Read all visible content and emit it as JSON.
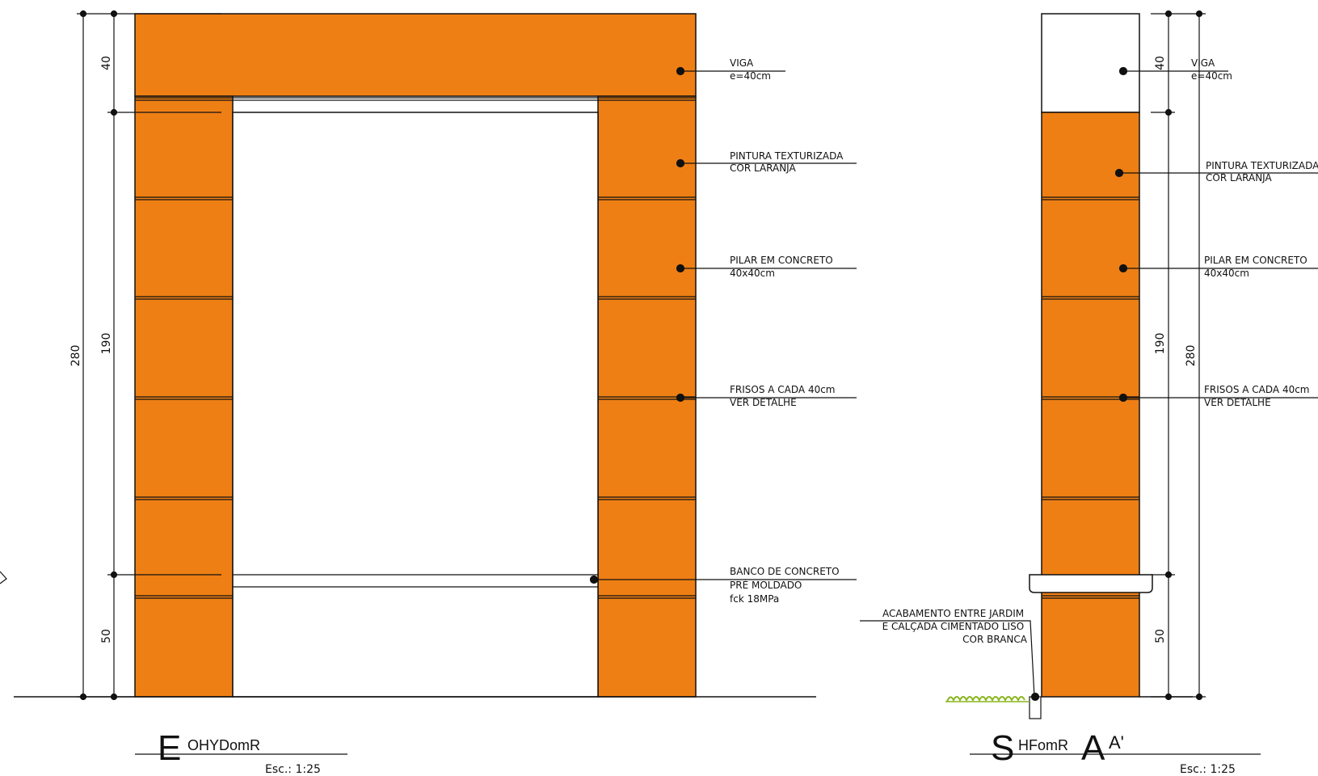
{
  "colors": {
    "wall": "#ee7f14",
    "line": "#111111",
    "grass": "#8ab51e",
    "background": "#ffffff"
  },
  "elevation": {
    "title_big": "E",
    "title_small": "OHYDomR",
    "scale": "Esc.: 1:25",
    "dimensions": {
      "total": "280",
      "top": "40",
      "middle": "190",
      "bottom": "50"
    },
    "labels": [
      {
        "id": "viga",
        "lines": [
          "VIGA",
          "e=40cm"
        ]
      },
      {
        "id": "pintura",
        "lines": [
          "PINTURA  TEXTURIZADA",
          "COR  LARANJA"
        ]
      },
      {
        "id": "pilar",
        "lines": [
          "PILAR  EM  CONCRETO",
          "40x40cm"
        ]
      },
      {
        "id": "frisos",
        "lines": [
          "FRISOS  A  CADA  40cm",
          "VER  DETALHE"
        ]
      },
      {
        "id": "banco",
        "lines": [
          "BANCO  DE  CONCRETO",
          "PRÉ  MOLDADO",
          "fck  18MPa"
        ]
      }
    ]
  },
  "section": {
    "title_big": "S",
    "title_small": "HFomR",
    "title_letter": "A",
    "title_suffix": "A'",
    "scale": "Esc.: 1:25",
    "dimensions": {
      "top": "40",
      "middle": "190",
      "total": "280",
      "bottom": "50"
    },
    "labels": [
      {
        "id": "viga",
        "lines": [
          "VIGA",
          "e=40cm"
        ]
      },
      {
        "id": "pintura",
        "lines": [
          "PINTURA  TEXTURIZADA",
          "COR  LARANJA"
        ]
      },
      {
        "id": "pilar",
        "lines": [
          "PILAR  EM  CONCRETO",
          "40x40cm"
        ]
      },
      {
        "id": "frisos",
        "lines": [
          "FRISOS  A  CADA  40cm",
          "VER  DETALHE"
        ]
      }
    ],
    "acabamento": [
      "ACABAMENTO  ENTRE  JARDIM",
      "E  CALÇADA  CIMENTADO  LISO",
      "COR  BRANCA"
    ]
  }
}
